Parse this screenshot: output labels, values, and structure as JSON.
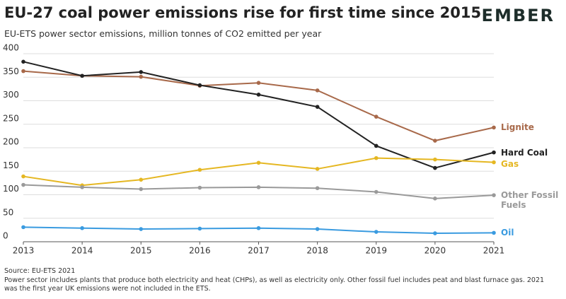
{
  "title": "EU-27 coal power emissions rise for first time since 2015",
  "logo": "EMBER",
  "chart_data": {
    "type": "line",
    "subtitle": "EU-ETS power sector emissions, million tonnes of CO2 emitted per year",
    "x": [
      2013,
      2014,
      2015,
      2016,
      2017,
      2018,
      2019,
      2020,
      2021
    ],
    "xlim": [
      2013,
      2021
    ],
    "xticks": [
      2013,
      2014,
      2015,
      2016,
      2017,
      2018,
      2019,
      2020,
      2021
    ],
    "ylim": [
      0,
      400
    ],
    "yticks": [
      0,
      50,
      100,
      150,
      200,
      250,
      300,
      350,
      400
    ],
    "grid": true,
    "series": [
      {
        "name": "Lignite",
        "color": "#a8694a",
        "values": [
          363,
          353,
          351,
          332,
          338,
          322,
          266,
          215,
          243
        ]
      },
      {
        "name": "Hard Coal",
        "color": "#222222",
        "values": [
          383,
          353,
          361,
          333,
          313,
          287,
          204,
          157,
          190
        ]
      },
      {
        "name": "Gas",
        "color": "#e5b722",
        "values": [
          139,
          120,
          132,
          153,
          168,
          155,
          178,
          175,
          169
        ]
      },
      {
        "name": "Other Fossil Fuels",
        "color": "#9a9a9a",
        "values": [
          121,
          116,
          112,
          115,
          116,
          114,
          106,
          92,
          99
        ]
      },
      {
        "name": "Oil",
        "color": "#3a9be0",
        "values": [
          31,
          29,
          27,
          28,
          29,
          27,
          21,
          18,
          19
        ]
      }
    ]
  },
  "source": "Source: EU-ETS 2021",
  "note": "Power sector includes plants that produce both electricity and heat (CHPs), as well as electricity only. Other fossil fuel includes peat and blast furnace gas. 2021 was the first year UK emissions were not included in the ETS."
}
